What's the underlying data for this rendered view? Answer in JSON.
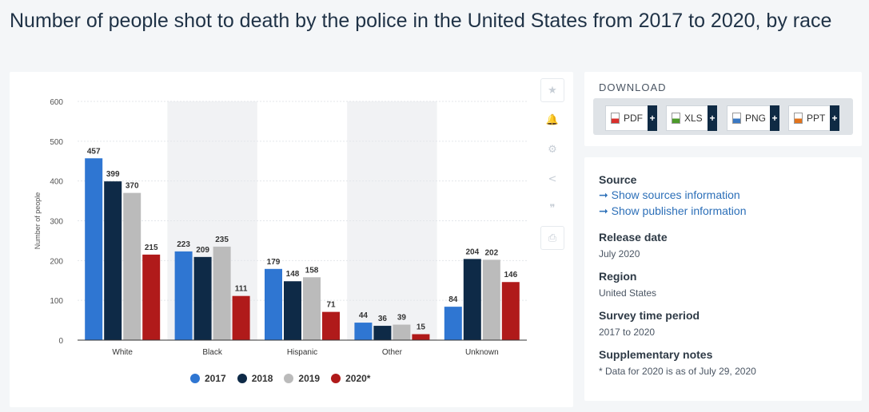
{
  "page": {
    "title": "Number of people shot to death by the police in the United States from 2017 to 2020, by race"
  },
  "colors": {
    "2017": "#2f76d2",
    "2018": "#0e2a47",
    "2019": "#bbbbbb",
    "2020*": "#b01a1a",
    "band": "#f1f2f4",
    "accent_link": "#2c6fb8"
  },
  "toolbar": {
    "icons": [
      "star-icon",
      "bell-icon",
      "gear-icon",
      "share-icon",
      "quote-icon",
      "print-icon"
    ],
    "glyphs": [
      "★",
      "🔔",
      "⚙",
      "<",
      "❞",
      "⎙"
    ]
  },
  "chart_data": {
    "type": "bar",
    "title": "",
    "xlabel": "",
    "ylabel": "Number of people",
    "ylim": [
      0,
      600
    ],
    "yticks": [
      0,
      100,
      200,
      300,
      400,
      500,
      600
    ],
    "categories": [
      "White",
      "Black",
      "Hispanic",
      "Other",
      "Unknown"
    ],
    "series": [
      {
        "name": "2017",
        "values": [
          457,
          223,
          179,
          44,
          84
        ]
      },
      {
        "name": "2018",
        "values": [
          399,
          209,
          148,
          36,
          204
        ]
      },
      {
        "name": "2019",
        "values": [
          370,
          235,
          158,
          39,
          202
        ]
      },
      {
        "name": "2020*",
        "values": [
          215,
          111,
          71,
          15,
          146
        ]
      }
    ],
    "grid": true,
    "legend": "bottom",
    "shaded_categories": [
      "Black",
      "Other"
    ]
  },
  "download": {
    "title": "DOWNLOAD",
    "buttons": [
      {
        "label": "PDF",
        "plus": "+",
        "icon": "pdf-file-icon",
        "color": "#d9302c"
      },
      {
        "label": "XLS",
        "plus": "+",
        "icon": "xls-file-icon",
        "color": "#4c9a2a"
      },
      {
        "label": "PNG",
        "plus": "+",
        "icon": "png-file-icon",
        "color": "#3a78c3"
      },
      {
        "label": "PPT",
        "plus": "+",
        "icon": "ppt-file-icon",
        "color": "#e2731c"
      }
    ]
  },
  "info": {
    "source_head": "Source",
    "link1": "➞ Show sources information",
    "link2": "➞ Show publisher information",
    "release_head": "Release date",
    "release_val": "July 2020",
    "region_head": "Region",
    "region_val": "United States",
    "period_head": "Survey time period",
    "period_val": "2017 to 2020",
    "notes_head": "Supplementary notes",
    "notes_val": "* Data for 2020 is as of July 29, 2020"
  }
}
